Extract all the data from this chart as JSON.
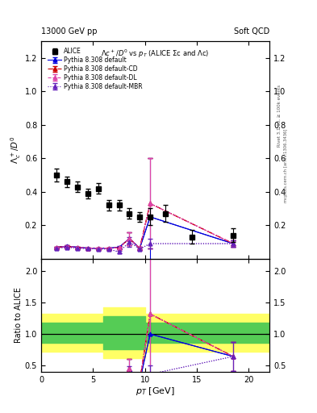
{
  "top_left_label": "13000 GeV pp",
  "top_right_label": "Soft QCD",
  "right_label1": "Rivet 3.1.10, ≥ 100k events",
  "right_label2": "mcplots.cern.ch [arXiv:1306.3436]",
  "xlim": [
    0,
    22
  ],
  "ylim_main": [
    0,
    1.3
  ],
  "ylim_ratio": [
    0.4,
    2.2
  ],
  "yticks_main": [
    0.2,
    0.4,
    0.6,
    0.8,
    1.0,
    1.2
  ],
  "yticks_ratio": [
    0.5,
    1.0,
    1.5,
    2.0
  ],
  "xticks": [
    0,
    5,
    10,
    15,
    20
  ],
  "alice_x": [
    1.5,
    2.5,
    3.5,
    4.5,
    5.5,
    6.5,
    7.5,
    8.5,
    9.5,
    10.5,
    12.0,
    14.5,
    18.5
  ],
  "alice_y": [
    0.5,
    0.46,
    0.43,
    0.39,
    0.42,
    0.32,
    0.32,
    0.27,
    0.25,
    0.25,
    0.27,
    0.13,
    0.14
  ],
  "alice_yerr": [
    0.04,
    0.03,
    0.03,
    0.03,
    0.03,
    0.03,
    0.03,
    0.03,
    0.03,
    0.05,
    0.05,
    0.04,
    0.04
  ],
  "pydef_x": [
    1.5,
    2.5,
    3.5,
    4.5,
    5.5,
    6.5,
    7.5,
    8.5,
    9.5,
    10.5,
    18.5
  ],
  "pydef_y": [
    0.068,
    0.075,
    0.068,
    0.063,
    0.063,
    0.063,
    0.068,
    0.12,
    0.063,
    0.25,
    0.09
  ],
  "pydef_yerr": [
    0.005,
    0.006,
    0.005,
    0.005,
    0.005,
    0.005,
    0.006,
    0.04,
    0.006,
    0.35,
    0.02
  ],
  "pycd_x": [
    1.5,
    2.5,
    3.5,
    4.5,
    5.5,
    6.5,
    7.5,
    8.5,
    9.5,
    10.5,
    18.5
  ],
  "pycd_y": [
    0.068,
    0.073,
    0.068,
    0.063,
    0.063,
    0.063,
    0.065,
    0.12,
    0.063,
    0.33,
    0.09
  ],
  "pycd_yerr": [
    0.005,
    0.006,
    0.005,
    0.005,
    0.005,
    0.005,
    0.006,
    0.04,
    0.006,
    0.27,
    0.02
  ],
  "pydl_x": [
    1.5,
    2.5,
    3.5,
    4.5,
    5.5,
    6.5,
    7.5,
    8.5,
    9.5,
    10.5,
    18.5
  ],
  "pydl_y": [
    0.068,
    0.073,
    0.068,
    0.063,
    0.063,
    0.063,
    0.065,
    0.12,
    0.063,
    0.33,
    0.09
  ],
  "pydl_yerr": [
    0.005,
    0.006,
    0.005,
    0.005,
    0.005,
    0.005,
    0.006,
    0.04,
    0.006,
    0.27,
    0.02
  ],
  "pymbr_x": [
    1.5,
    2.5,
    3.5,
    4.5,
    5.5,
    6.5,
    7.5,
    8.5,
    9.5,
    10.5,
    18.5
  ],
  "pymbr_y": [
    0.063,
    0.068,
    0.063,
    0.06,
    0.058,
    0.058,
    0.04,
    0.1,
    0.058,
    0.09,
    0.09
  ],
  "pymbr_yerr": [
    0.005,
    0.005,
    0.005,
    0.005,
    0.005,
    0.005,
    0.006,
    0.03,
    0.006,
    0.03,
    0.02
  ],
  "band_x": [
    0,
    6,
    6,
    10,
    10,
    22
  ],
  "band_yellow_lo": [
    0.72,
    0.72,
    0.62,
    0.62,
    0.72,
    0.72
  ],
  "band_yellow_hi": [
    1.32,
    1.32,
    1.42,
    1.42,
    1.32,
    1.32
  ],
  "band_green_lo": [
    0.86,
    0.86,
    0.76,
    0.76,
    0.86,
    0.86
  ],
  "band_green_hi": [
    1.18,
    1.18,
    1.28,
    1.28,
    1.18,
    1.18
  ],
  "color_alice": "#000000",
  "color_default": "#0000dd",
  "color_cd": "#cc0000",
  "color_dl": "#dd44aa",
  "color_mbr": "#6622bb"
}
